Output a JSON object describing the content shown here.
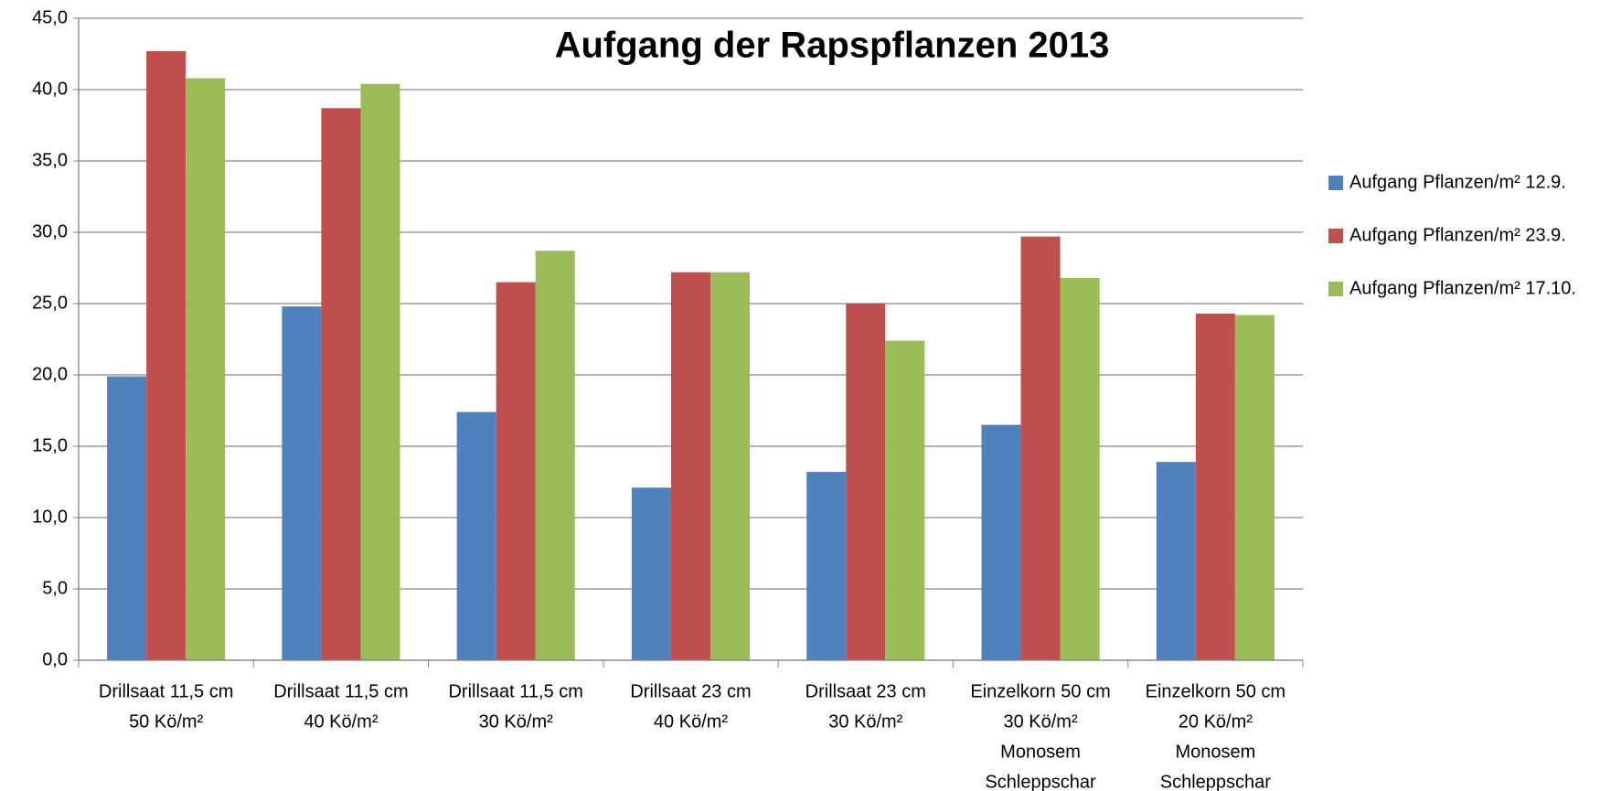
{
  "chart_data": {
    "type": "bar",
    "title": "Aufgang der Rapspflanzen 2013",
    "categories": [
      [
        "Drillsaat 11,5 cm",
        "50 Kö/m²"
      ],
      [
        "Drillsaat 11,5 cm",
        "40 Kö/m²"
      ],
      [
        "Drillsaat 11,5 cm",
        "30 Kö/m²"
      ],
      [
        "Drillsaat 23 cm",
        "40 Kö/m²"
      ],
      [
        "Drillsaat 23 cm",
        "30 Kö/m²"
      ],
      [
        "Einzelkorn 50 cm",
        "30 Kö/m²",
        "Monosem",
        "Schleppschar"
      ],
      [
        "Einzelkorn 50 cm",
        "20 Kö/m²",
        "Monosem",
        "Schleppschar"
      ]
    ],
    "series": [
      {
        "name": "Aufgang Pflanzen/m² 12.9.",
        "color": "#4f81bd",
        "values": [
          19.9,
          24.8,
          17.4,
          12.1,
          13.2,
          16.5,
          13.9
        ]
      },
      {
        "name": "Aufgang Pflanzen/m² 23.9.",
        "color": "#c0504d",
        "values": [
          42.7,
          38.7,
          26.5,
          27.2,
          25.0,
          29.7,
          24.3
        ]
      },
      {
        "name": "Aufgang Pflanzen/m² 17.10.",
        "color": "#9bbb59",
        "values": [
          40.8,
          40.4,
          28.7,
          27.2,
          22.4,
          26.8,
          24.2
        ]
      }
    ],
    "ylim": [
      0,
      45
    ],
    "yticks": [
      {
        "value": 0,
        "label": "0,0"
      },
      {
        "value": 5,
        "label": "5,0"
      },
      {
        "value": 10,
        "label": "10,0"
      },
      {
        "value": 15,
        "label": "15,0"
      },
      {
        "value": 20,
        "label": "20,0"
      },
      {
        "value": 25,
        "label": "25,0"
      },
      {
        "value": 30,
        "label": "30,0"
      },
      {
        "value": 35,
        "label": "35,0"
      },
      {
        "value": 40,
        "label": "40,0"
      },
      {
        "value": 45,
        "label": "45,0"
      }
    ],
    "grid": true,
    "legend": "right"
  }
}
